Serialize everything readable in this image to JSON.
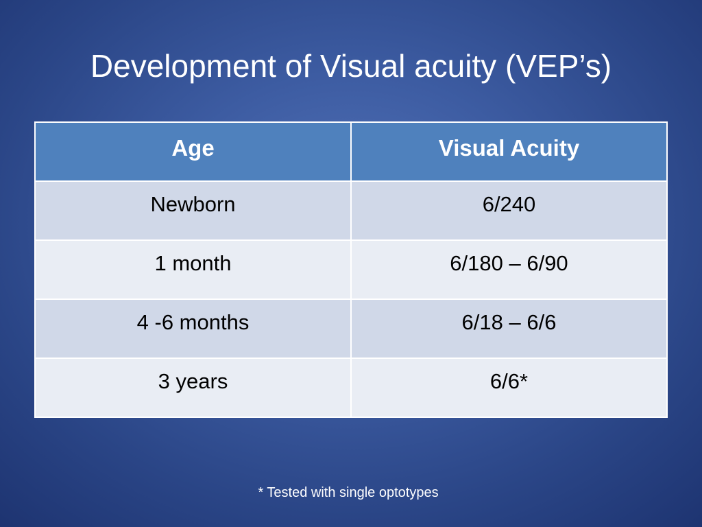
{
  "slide": {
    "title": "Development of Visual acuity (VEP’s)",
    "footnote": "* Tested with single optotypes"
  },
  "table": {
    "headers": [
      "Age",
      "Visual Acuity"
    ],
    "rows": [
      [
        "Newborn",
        "6/240"
      ],
      [
        "1 month",
        "6/180 – 6/90"
      ],
      [
        "4 -6 months",
        "6/18 – 6/6"
      ],
      [
        "3 years",
        "6/6*"
      ]
    ]
  },
  "colors": {
    "background": "#3d5ca2",
    "header_fill": "#4f81bd",
    "row_dark": "#d0d8e8",
    "row_light": "#e9edf4"
  }
}
